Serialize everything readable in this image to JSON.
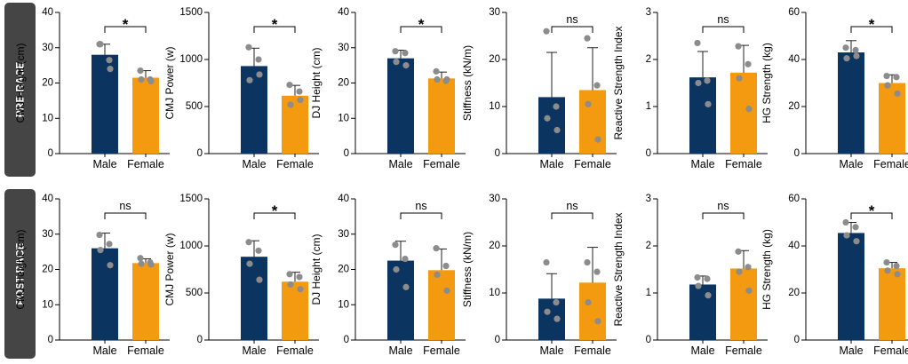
{
  "colors": {
    "male": "#0c3460",
    "female": "#f39a10",
    "dot": "#8c8c8c",
    "axis": "#000000",
    "row_label_bg": "#454545",
    "row_label_text": "#ffffff"
  },
  "chart_data": [
    {
      "row": "PRE-RACE",
      "col": 0,
      "type": "bar",
      "ylabel": "CMJ Height (cm)",
      "ylim": [
        0,
        40
      ],
      "yticks": [
        0,
        10,
        20,
        30,
        40
      ],
      "categories": [
        "Male",
        "Female"
      ],
      "values": [
        28,
        21.5
      ],
      "errors": [
        3,
        2
      ],
      "points": [
        [
          31,
          26.5,
          31,
          24
        ],
        [
          23.5,
          21,
          21,
          20.5
        ]
      ],
      "significance": "*"
    },
    {
      "row": "PRE-RACE",
      "col": 1,
      "type": "bar",
      "ylabel": "CMJ Power (w)",
      "ylim": [
        0,
        1500
      ],
      "yticks": [
        0,
        500,
        1000,
        1500
      ],
      "categories": [
        "Male",
        "Female"
      ],
      "values": [
        930,
        615
      ],
      "errors": [
        190,
        110
      ],
      "points": [
        [
          1130,
          1000,
          780,
          840
        ],
        [
          730,
          660,
          520,
          570
        ]
      ],
      "significance": "*"
    },
    {
      "row": "PRE-RACE",
      "col": 2,
      "type": "bar",
      "ylabel": "DJ Height (cm)",
      "ylim": [
        0,
        40
      ],
      "yticks": [
        0,
        10,
        20,
        30,
        40
      ],
      "categories": [
        "Male",
        "Female"
      ],
      "values": [
        27,
        21.3
      ],
      "errors": [
        2.3,
        1.8
      ],
      "points": [
        [
          29,
          28.5,
          26,
          25
        ],
        [
          23.3,
          20.6,
          21,
          21
        ]
      ],
      "significance": "*"
    },
    {
      "row": "PRE-RACE",
      "col": 3,
      "type": "bar",
      "ylabel": "Stiffness (kN/m)",
      "ylim": [
        0,
        30
      ],
      "yticks": [
        0,
        10,
        20,
        30
      ],
      "categories": [
        "Male",
        "Female"
      ],
      "values": [
        12,
        13.5
      ],
      "errors": [
        9.5,
        9
      ],
      "points": [
        [
          26,
          10,
          7.5,
          5
        ],
        [
          24.5,
          14.5,
          10.5,
          3
        ]
      ],
      "significance": "ns"
    },
    {
      "row": "PRE-RACE",
      "col": 4,
      "type": "bar",
      "ylabel": "Reactive Strength Index",
      "ylim": [
        0,
        3
      ],
      "yticks": [
        0,
        1,
        2,
        3
      ],
      "categories": [
        "Male",
        "Female"
      ],
      "values": [
        1.62,
        1.72
      ],
      "errors": [
        0.55,
        0.58
      ],
      "points": [
        [
          2.35,
          1.55,
          1.5,
          1.05
        ],
        [
          2.28,
          1.9,
          1.6,
          0.95
        ]
      ],
      "significance": "ns"
    },
    {
      "row": "PRE-RACE",
      "col": 5,
      "type": "bar",
      "ylabel": "HG Strength (kg)",
      "ylim": [
        0,
        60
      ],
      "yticks": [
        0,
        20,
        40,
        60
      ],
      "categories": [
        "Male",
        "Female"
      ],
      "values": [
        43,
        30
      ],
      "errors": [
        5,
        3.5
      ],
      "points": [
        [
          45,
          44,
          40.5,
          41.5
        ],
        [
          33,
          32.5,
          29,
          25.5
        ]
      ],
      "significance": "*"
    },
    {
      "row": "POST-RACE",
      "col": 0,
      "type": "bar",
      "ylabel": "CMJ Height (cm)",
      "ylim": [
        0,
        40
      ],
      "yticks": [
        0,
        10,
        20,
        30,
        40
      ],
      "categories": [
        "Male",
        "Female"
      ],
      "values": [
        26,
        21.8
      ],
      "errors": [
        4.3,
        1.2
      ],
      "points": [
        [
          29.8,
          27.2,
          25.5,
          21.2
        ],
        [
          23.2,
          22,
          21.6,
          21.4
        ]
      ],
      "significance": "ns"
    },
    {
      "row": "POST-RACE",
      "col": 1,
      "type": "bar",
      "ylabel": "CMJ Power (w)",
      "ylim": [
        0,
        1500
      ],
      "yticks": [
        0,
        500,
        1000,
        1500
      ],
      "categories": [
        "Male",
        "Female"
      ],
      "values": [
        885,
        620
      ],
      "errors": [
        170,
        100
      ],
      "points": [
        [
          1040,
          950,
          810,
          640
        ],
        [
          700,
          670,
          590,
          540
        ]
      ],
      "significance": "*"
    },
    {
      "row": "POST-RACE",
      "col": 2,
      "type": "bar",
      "ylabel": "DJ Height (cm)",
      "ylim": [
        0,
        40
      ],
      "yticks": [
        0,
        10,
        20,
        30,
        40
      ],
      "categories": [
        "Male",
        "Female"
      ],
      "values": [
        22.5,
        19.8
      ],
      "errors": [
        5.5,
        6
      ],
      "points": [
        [
          27,
          23,
          20,
          15
        ],
        [
          26,
          21,
          18.5,
          14
        ]
      ],
      "significance": "ns"
    },
    {
      "row": "POST-RACE",
      "col": 3,
      "type": "bar",
      "ylabel": "Stiffness (kN/m)",
      "ylim": [
        0,
        30
      ],
      "yticks": [
        0,
        10,
        20,
        30
      ],
      "categories": [
        "Male",
        "Female"
      ],
      "values": [
        8.8,
        12.2
      ],
      "errors": [
        5.3,
        7.5
      ],
      "points": [
        [
          16.5,
          8,
          6,
          4.5
        ],
        [
          16.5,
          14.5,
          8,
          4
        ]
      ],
      "significance": "ns"
    },
    {
      "row": "POST-RACE",
      "col": 4,
      "type": "bar",
      "ylabel": "Reactive Strength Index",
      "ylim": [
        0,
        3
      ],
      "yticks": [
        0,
        1,
        2,
        3
      ],
      "categories": [
        "Male",
        "Female"
      ],
      "values": [
        1.18,
        1.52
      ],
      "errors": [
        0.18,
        0.38
      ],
      "points": [
        [
          1.33,
          1.3,
          1.15,
          0.95
        ],
        [
          1.88,
          1.55,
          1.45,
          1.05
        ]
      ],
      "significance": "ns"
    },
    {
      "row": "POST-RACE",
      "col": 5,
      "type": "bar",
      "ylabel": "HG Strength (kg)",
      "ylim": [
        0,
        60
      ],
      "yticks": [
        0,
        20,
        40,
        60
      ],
      "categories": [
        "Male",
        "Female"
      ],
      "values": [
        45.5,
        30.5
      ],
      "errors": [
        4.5,
        2.5
      ],
      "points": [
        [
          50,
          48,
          44.5,
          42
        ],
        [
          33,
          31.5,
          29.5,
          28
        ]
      ],
      "significance": "*"
    }
  ],
  "row_labels": [
    "PRE-RACE",
    "POST-RACE"
  ]
}
